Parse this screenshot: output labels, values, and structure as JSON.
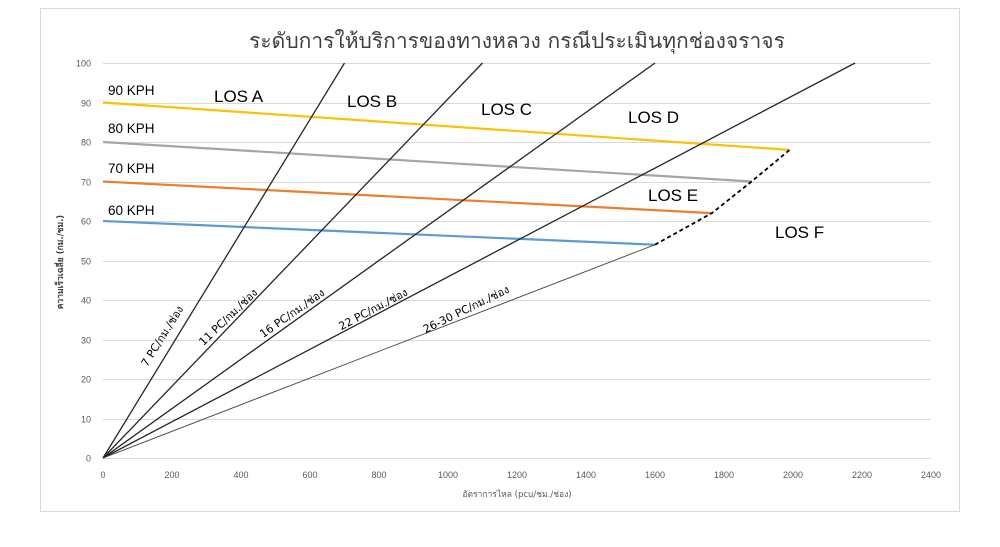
{
  "chart_data": {
    "type": "line",
    "title": "ระดับการให้บริการของทางหลวง กรณีประเมินทุกช่องจราจร",
    "xlabel": "อัตราการไหล (pcu/ชม./ช่อง)",
    "ylabel": "ความเร็วเฉลี่ย (กม./ชม.)",
    "xlim": [
      0,
      2400
    ],
    "ylim": [
      0,
      100
    ],
    "xticks": [
      "0",
      "200",
      "400",
      "600",
      "800",
      "1000",
      "1200",
      "1400",
      "1600",
      "1800",
      "2000",
      "2200",
      "2400"
    ],
    "yticks": [
      "0",
      "10",
      "20",
      "30",
      "40",
      "50",
      "60",
      "70",
      "80",
      "90",
      "100"
    ],
    "ygrid": true,
    "xgrid": false,
    "series": [
      {
        "name": "90 KPH",
        "color": "#FFC000",
        "x": [
          0,
          1990
        ],
        "y": [
          90,
          78
        ]
      },
      {
        "name": "80 KPH",
        "color": "#A5A5A5",
        "x": [
          0,
          1880
        ],
        "y": [
          80,
          70
        ]
      },
      {
        "name": "70 KPH",
        "color": "#ED7D31",
        "x": [
          0,
          1765
        ],
        "y": [
          70,
          62
        ]
      },
      {
        "name": "60 KPH",
        "color": "#5B9BD5",
        "x": [
          0,
          1600
        ],
        "y": [
          60,
          54
        ]
      },
      {
        "name": "7 PC/กม./ช่อง",
        "color": "#262626",
        "x": [
          0,
          700
        ],
        "y": [
          0,
          100
        ]
      },
      {
        "name": "11 PC/กม./ช่อง",
        "color": "#262626",
        "x": [
          0,
          1100
        ],
        "y": [
          0,
          100
        ]
      },
      {
        "name": "16 PC/กม./ช่อง",
        "color": "#262626",
        "x": [
          0,
          1600
        ],
        "y": [
          0,
          100
        ]
      },
      {
        "name": "22 PC/กม./ช่อง",
        "color": "#262626",
        "x": [
          0,
          2180
        ],
        "y": [
          0,
          100
        ]
      },
      {
        "name": "26-30 PC/กม./ช่อง",
        "color": "#404040",
        "x": [
          0,
          1600
        ],
        "y": [
          0,
          54
        ]
      },
      {
        "color": "#000000",
        "dashed": true,
        "x": [
          1600,
          1765,
          1880,
          1990
        ],
        "y": [
          54,
          62,
          70,
          78
        ]
      }
    ],
    "regions": [
      "LOS A",
      "LOS B",
      "LOS C",
      "LOS D",
      "LOS E",
      "LOS F"
    ]
  }
}
